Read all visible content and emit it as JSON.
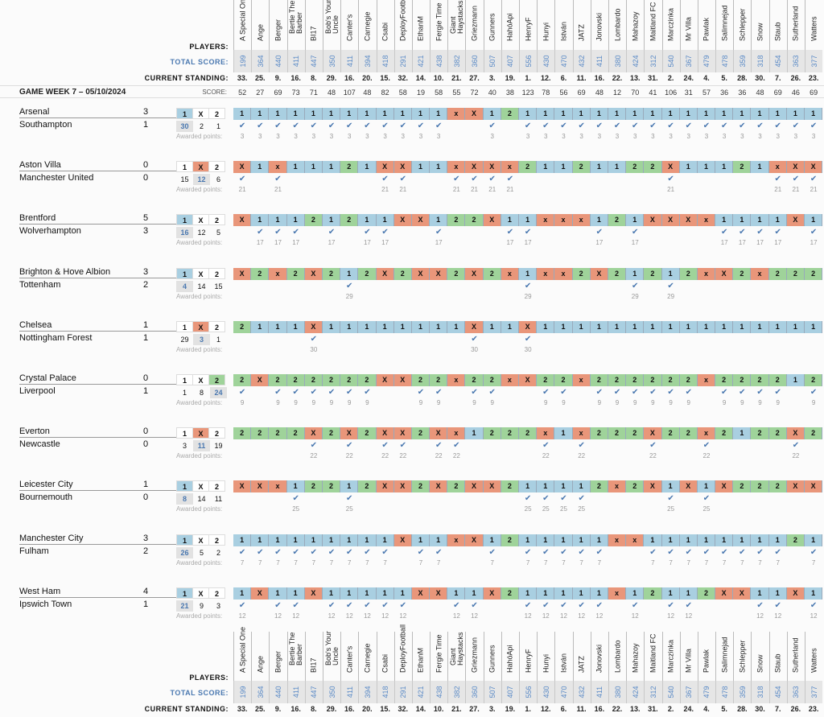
{
  "labels": {
    "players": "PLAYERS:",
    "total_score": "TOTAL SCORE:",
    "current_standing": "CURRENT STANDING:",
    "gameweek_title": "GAME WEEK 7 – 05/10/2024",
    "score": "SCORE:",
    "awarded_points": "Awarded points:",
    "option_1": "1",
    "option_x": "X",
    "option_2": "2",
    "check_mark": "✔"
  },
  "colors": {
    "pick_1": "#a9cfe1",
    "pick_x": "#e9967a",
    "pick_2": "#9fd39a",
    "total_score_text": "#5a8ac6",
    "check": "#4a78b0"
  },
  "players": [
    {
      "name": "A Special One",
      "total": "199",
      "standing": "33.",
      "score": "52"
    },
    {
      "name": "Ange",
      "total": "364",
      "standing": "25.",
      "score": "27"
    },
    {
      "name": "Berger",
      "total": "440",
      "standing": "9.",
      "score": "69"
    },
    {
      "name": "Bertie The Barber",
      "total": "411",
      "standing": "16.",
      "score": "73"
    },
    {
      "name": "BI17",
      "total": "447",
      "standing": "8.",
      "score": "71"
    },
    {
      "name": "Bob's Your Uncle",
      "total": "350",
      "standing": "29.",
      "score": "48"
    },
    {
      "name": "Canter's",
      "total": "411",
      "standing": "16.",
      "score": "107"
    },
    {
      "name": "Carnegie",
      "total": "394",
      "standing": "20.",
      "score": "48"
    },
    {
      "name": "Csabi",
      "total": "418",
      "standing": "15.",
      "score": "82"
    },
    {
      "name": "DeployFootball",
      "total": "291",
      "standing": "32.",
      "score": "58"
    },
    {
      "name": "EthanM",
      "total": "421",
      "standing": "14.",
      "score": "19"
    },
    {
      "name": "Fergie Time",
      "total": "438",
      "standing": "10.",
      "score": "58"
    },
    {
      "name": "Giant Haystacks",
      "total": "382",
      "standing": "21.",
      "score": "55"
    },
    {
      "name": "Griezmann",
      "total": "360",
      "standing": "27.",
      "score": "72"
    },
    {
      "name": "Gunners",
      "total": "507",
      "standing": "3.",
      "score": "40"
    },
    {
      "name": "HahóApi",
      "total": "407",
      "standing": "19.",
      "score": "38"
    },
    {
      "name": "HenryF",
      "total": "556",
      "standing": "1.",
      "score": "123"
    },
    {
      "name": "Hunyi",
      "total": "430",
      "standing": "12.",
      "score": "78"
    },
    {
      "name": "István",
      "total": "470",
      "standing": "6.",
      "score": "56"
    },
    {
      "name": "JATZ",
      "total": "432",
      "standing": "11.",
      "score": "69"
    },
    {
      "name": "Jonovski",
      "total": "411",
      "standing": "16.",
      "score": "48"
    },
    {
      "name": "Lombardo",
      "total": "380",
      "standing": "22.",
      "score": "12"
    },
    {
      "name": "Mahazoy",
      "total": "424",
      "standing": "13.",
      "score": "70"
    },
    {
      "name": "Maitland FC",
      "total": "312",
      "standing": "31.",
      "score": "41"
    },
    {
      "name": "Marczinka",
      "total": "540",
      "standing": "2.",
      "score": "106"
    },
    {
      "name": "Mr Villa",
      "total": "367",
      "standing": "24.",
      "score": "31"
    },
    {
      "name": "Pawlak",
      "total": "479",
      "standing": "4.",
      "score": "57"
    },
    {
      "name": "Salimnejad",
      "total": "478",
      "standing": "5.",
      "score": "36"
    },
    {
      "name": "Schlepper",
      "total": "359",
      "standing": "28.",
      "score": "36"
    },
    {
      "name": "Snow",
      "total": "318",
      "standing": "30.",
      "score": "48"
    },
    {
      "name": "Staub",
      "total": "454",
      "standing": "7.",
      "score": "69"
    },
    {
      "name": "Sutherland",
      "total": "363",
      "standing": "26.",
      "score": "46"
    },
    {
      "name": "Watters",
      "total": "377",
      "standing": "23.",
      "score": "69"
    }
  ],
  "matches": [
    {
      "home": "Arsenal",
      "away": "Southampton",
      "home_goals": "3",
      "away_goals": "1",
      "result": "1",
      "counts": [
        "30",
        "2",
        "1"
      ],
      "points": "3",
      "picks": [
        "1",
        "1",
        "1",
        "1",
        "1",
        "1",
        "1",
        "1",
        "1",
        "1",
        "1",
        "1",
        "x",
        "X",
        "1",
        "2",
        "1",
        "1",
        "1",
        "1",
        "1",
        "1",
        "1",
        "1",
        "1",
        "1",
        "1",
        "1",
        "1",
        "1",
        "1",
        "1",
        "1"
      ]
    },
    {
      "home": "Aston Villa",
      "away": "Manchester United",
      "home_goals": "0",
      "away_goals": "0",
      "result": "X",
      "counts": [
        "15",
        "12",
        "6"
      ],
      "points": "21",
      "picks": [
        "X",
        "1",
        "x",
        "1",
        "1",
        "1",
        "2",
        "1",
        "X",
        "X",
        "1",
        "1",
        "x",
        "X",
        "X",
        "x",
        "2",
        "1",
        "1",
        "2",
        "1",
        "1",
        "2",
        "2",
        "X",
        "1",
        "1",
        "1",
        "2",
        "1",
        "x",
        "X",
        "X"
      ]
    },
    {
      "home": "Brentford",
      "away": "Wolverhampton",
      "home_goals": "5",
      "away_goals": "3",
      "result": "1",
      "counts": [
        "16",
        "12",
        "5"
      ],
      "points": "17",
      "picks": [
        "X",
        "1",
        "1",
        "1",
        "2",
        "1",
        "2",
        "1",
        "1",
        "X",
        "X",
        "1",
        "2",
        "2",
        "X",
        "1",
        "1",
        "x",
        "x",
        "x",
        "1",
        "2",
        "1",
        "X",
        "X",
        "X",
        "x",
        "1",
        "1",
        "1",
        "1",
        "X",
        "1"
      ]
    },
    {
      "home": "Brighton & Hove Albion",
      "away": "Tottenham",
      "home_goals": "3",
      "away_goals": "2",
      "result": "1",
      "counts": [
        "4",
        "14",
        "15"
      ],
      "points": "29",
      "picks": [
        "X",
        "2",
        "x",
        "2",
        "X",
        "2",
        "1",
        "2",
        "X",
        "2",
        "X",
        "X",
        "2",
        "X",
        "2",
        "x",
        "1",
        "x",
        "x",
        "2",
        "X",
        "2",
        "1",
        "2",
        "1",
        "2",
        "x",
        "X",
        "2",
        "x",
        "2",
        "2",
        "2"
      ]
    },
    {
      "home": "Chelsea",
      "away": "Nottingham Forest",
      "home_goals": "1",
      "away_goals": "1",
      "result": "X",
      "counts": [
        "29",
        "3",
        "1"
      ],
      "points": "30",
      "picks": [
        "2",
        "1",
        "1",
        "1",
        "X",
        "1",
        "1",
        "1",
        "1",
        "1",
        "1",
        "1",
        "1",
        "X",
        "1",
        "1",
        "X",
        "1",
        "1",
        "1",
        "1",
        "1",
        "1",
        "1",
        "1",
        "1",
        "1",
        "1",
        "1",
        "1",
        "1",
        "1",
        "1"
      ]
    },
    {
      "home": "Crystal Palace",
      "away": "Liverpool",
      "home_goals": "0",
      "away_goals": "1",
      "result": "2",
      "counts": [
        "1",
        "8",
        "24"
      ],
      "points": "9",
      "picks": [
        "2",
        "X",
        "2",
        "2",
        "2",
        "2",
        "2",
        "2",
        "X",
        "X",
        "2",
        "2",
        "x",
        "2",
        "2",
        "x",
        "X",
        "2",
        "2",
        "x",
        "2",
        "2",
        "2",
        "2",
        "2",
        "2",
        "x",
        "2",
        "2",
        "2",
        "2",
        "1",
        "2"
      ]
    },
    {
      "home": "Everton",
      "away": "Newcastle",
      "home_goals": "0",
      "away_goals": "0",
      "result": "X",
      "counts": [
        "3",
        "11",
        "19"
      ],
      "points": "22",
      "picks": [
        "2",
        "2",
        "2",
        "2",
        "X",
        "2",
        "X",
        "2",
        "X",
        "X",
        "2",
        "X",
        "x",
        "1",
        "2",
        "2",
        "2",
        "x",
        "1",
        "x",
        "2",
        "2",
        "2",
        "X",
        "2",
        "2",
        "x",
        "2",
        "1",
        "2",
        "2",
        "X",
        "2"
      ]
    },
    {
      "home": "Leicester City",
      "away": "Bournemouth",
      "home_goals": "1",
      "away_goals": "0",
      "result": "1",
      "counts": [
        "8",
        "14",
        "11"
      ],
      "points": "25",
      "picks": [
        "X",
        "X",
        "x",
        "1",
        "2",
        "2",
        "1",
        "2",
        "X",
        "X",
        "2",
        "X",
        "2",
        "X",
        "X",
        "2",
        "1",
        "1",
        "1",
        "1",
        "2",
        "x",
        "2",
        "X",
        "1",
        "X",
        "1",
        "X",
        "2",
        "2",
        "2",
        "X",
        "X"
      ]
    },
    {
      "home": "Manchester City",
      "away": "Fulham",
      "home_goals": "3",
      "away_goals": "2",
      "result": "1",
      "counts": [
        "26",
        "5",
        "2"
      ],
      "points": "7",
      "picks": [
        "1",
        "1",
        "1",
        "1",
        "1",
        "1",
        "1",
        "1",
        "1",
        "X",
        "1",
        "1",
        "x",
        "X",
        "1",
        "2",
        "1",
        "1",
        "1",
        "1",
        "1",
        "x",
        "x",
        "1",
        "1",
        "1",
        "1",
        "1",
        "1",
        "1",
        "1",
        "2",
        "1"
      ]
    },
    {
      "home": "West Ham",
      "away": "Ipswich Town",
      "home_goals": "4",
      "away_goals": "1",
      "result": "1",
      "counts": [
        "21",
        "9",
        "3"
      ],
      "points": "12",
      "picks": [
        "1",
        "X",
        "1",
        "1",
        "X",
        "1",
        "1",
        "1",
        "1",
        "1",
        "X",
        "X",
        "1",
        "1",
        "X",
        "2",
        "1",
        "1",
        "1",
        "1",
        "1",
        "x",
        "1",
        "2",
        "1",
        "1",
        "2",
        "X",
        "X",
        "1",
        "1",
        "X",
        "1"
      ]
    }
  ]
}
